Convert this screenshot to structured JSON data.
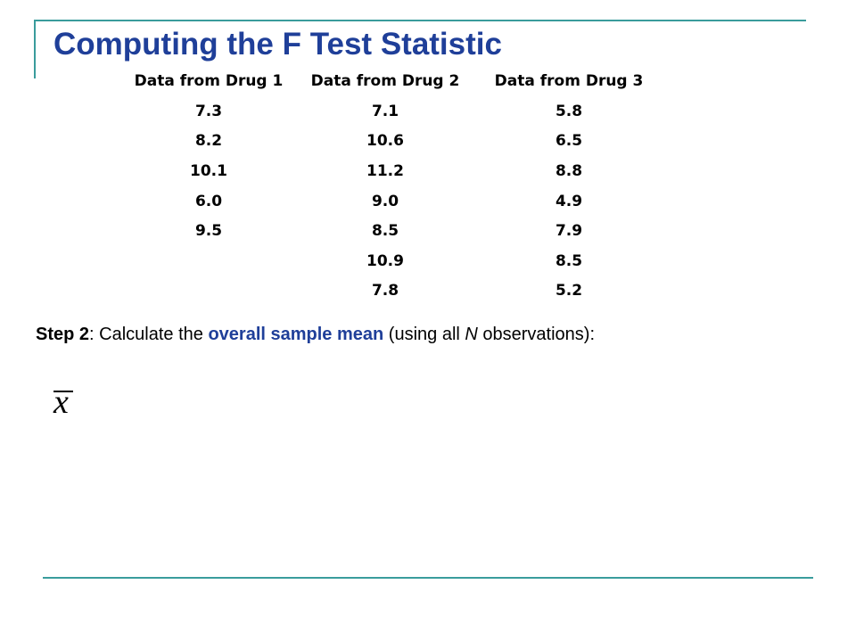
{
  "slide": {
    "title": "Computing the F Test Statistic",
    "table": {
      "headers": [
        "Data from Drug 1",
        "Data from Drug 2",
        "Data from Drug 3"
      ],
      "rows": [
        [
          "7.3",
          "7.1",
          "5.8"
        ],
        [
          "8.2",
          "10.6",
          "6.5"
        ],
        [
          "10.1",
          "11.2",
          "8.8"
        ],
        [
          "6.0",
          "9.0",
          "4.9"
        ],
        [
          "9.5",
          "8.5",
          "7.9"
        ],
        [
          "",
          "10.9",
          "8.5"
        ],
        [
          "",
          "7.8",
          "5.2"
        ]
      ]
    },
    "step": {
      "label": "Step 2",
      "text_before": ": Calculate the ",
      "highlight": "overall sample mean",
      "text_middle": " (using all ",
      "variable": "N",
      "text_after": " observations):"
    },
    "formula": {
      "symbol": "x"
    }
  },
  "colors": {
    "title": "#1f3f99",
    "accent": "#1f3f99",
    "rule": "#3a9c9c"
  }
}
